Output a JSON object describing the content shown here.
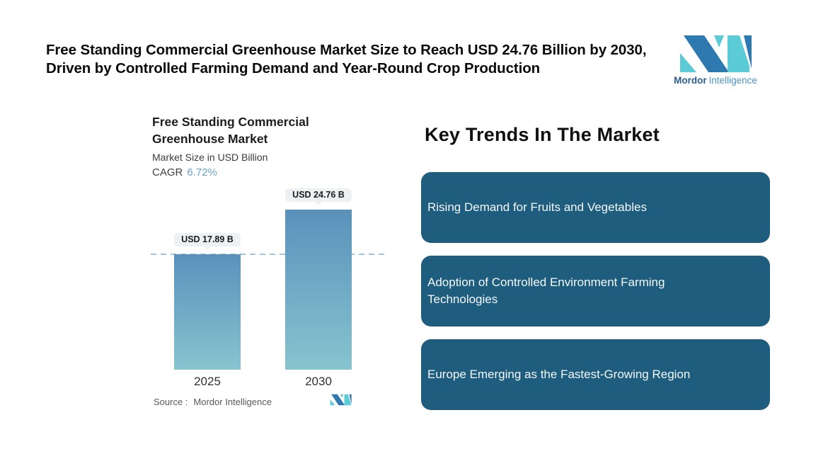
{
  "header": {
    "title": "Free Standing Commercial Greenhouse Market Size to Reach USD 24.76 Billion by 2030,\nDriven by Controlled Farming Demand and Year-Round Crop Production"
  },
  "brand": {
    "name_primary": "Mordor",
    "name_secondary": "Intelligence",
    "logo_dark_color": "#2e79b0",
    "logo_teal_color": "#5bcbd5"
  },
  "chart_data": {
    "type": "bar",
    "title": "Free Standing Commercial\nGreenhouse Market",
    "subtitle": "Market Size in USD Billion",
    "cagr_label": "CAGR",
    "cagr_value": "6.72%",
    "categories": [
      "2025",
      "2030"
    ],
    "values": [
      17.89,
      24.76
    ],
    "value_labels": [
      "USD 17.89 B",
      "USD 24.76 B"
    ],
    "unit": "USD Billion",
    "ylim": [
      0,
      24.76
    ],
    "reference_line_value": 17.89,
    "grid": false,
    "legend": "none",
    "bar_gradient_top": "#5a91bc",
    "bar_gradient_bottom": "#86c4cf",
    "reference_line_color": "#a3c6db"
  },
  "source": {
    "label": "Source :",
    "value": "Mordor Intelligence"
  },
  "key_trends": {
    "heading": "Key Trends In The Market",
    "box_color": "#1e5d7d",
    "items": [
      "Rising Demand for Fruits and Vegetables",
      "Adoption of Controlled Environment Farming Technologies",
      "Europe Emerging as the Fastest-Growing Region"
    ]
  }
}
